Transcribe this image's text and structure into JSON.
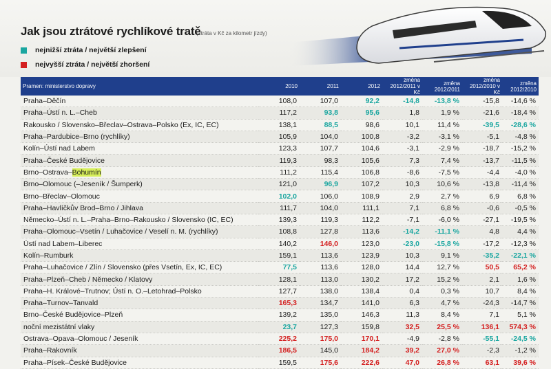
{
  "title": "Jak jsou ztrátové rychlíkové tratě",
  "subtitle": "(ztráta v Kč za kilometr jízdy)",
  "legend": {
    "best": {
      "label": "nejnižší ztráta / největší zlepšení",
      "color": "#1aa6a0"
    },
    "worst": {
      "label": "nejvyšší ztráta / největší zhoršení",
      "color": "#d42020"
    }
  },
  "columns": {
    "source": "Pramen: ministerstvo dopravy",
    "y2010": "2010",
    "y2011": "2011",
    "y2012": "2012",
    "chg_12_11_kc": [
      "změna",
      "2012/2011 v Kč"
    ],
    "chg_12_11_pct": [
      "změna",
      "2012/2011"
    ],
    "chg_12_10_kc": [
      "změna",
      "2012/2010 v Kč"
    ],
    "chg_12_10_pct": [
      "změna",
      "2012/2010"
    ]
  },
  "rows": [
    {
      "route": "Praha–Děčín",
      "v": [
        "108,0",
        "107,0",
        "92,2",
        "-14,8",
        "-13,8 %",
        "-15,8",
        "-14,6 %"
      ],
      "c": [
        "",
        "",
        "t",
        "t",
        "t",
        "",
        ""
      ]
    },
    {
      "route": "Praha–Ústí n. L.–Cheb",
      "v": [
        "117,2",
        "93,8",
        "95,6",
        "1,8",
        "1,9 %",
        "-21,6",
        "-18,4 %"
      ],
      "c": [
        "",
        "t",
        "t",
        "",
        "",
        "",
        ""
      ]
    },
    {
      "route": "Rakousko / Slovensko–Břeclav–Ostrava–Polsko (Ex, IC, EC)",
      "v": [
        "138,1",
        "88,5",
        "98,6",
        "10,1",
        "11,4 %",
        "-39,5",
        "-28,6 %"
      ],
      "c": [
        "",
        "t",
        "",
        "",
        "",
        "t",
        "t"
      ]
    },
    {
      "route": "Praha–Pardubice–Brno (rychlíky)",
      "v": [
        "105,9",
        "104,0",
        "100,8",
        "-3,2",
        "-3,1 %",
        "-5,1",
        "-4,8 %"
      ],
      "c": [
        "",
        "",
        "",
        "",
        "",
        "",
        ""
      ]
    },
    {
      "route": "Kolín–Ústí nad Labem",
      "v": [
        "123,3",
        "107,7",
        "104,6",
        "-3,1",
        "-2,9 %",
        "-18,7",
        "-15,2 %"
      ],
      "c": [
        "",
        "",
        "",
        "",
        "",
        "",
        ""
      ]
    },
    {
      "route": "Praha–České Budějovice",
      "v": [
        "119,3",
        "98,3",
        "105,6",
        "7,3",
        "7,4 %",
        "-13,7",
        "-11,5 %"
      ],
      "c": [
        "",
        "",
        "",
        "",
        "",
        "",
        ""
      ]
    },
    {
      "route": "Brno–Ostrava–",
      "hl": "Bohumín",
      "v": [
        "111,2",
        "115,4",
        "106,8",
        "-8,6",
        "-7,5 %",
        "-4,4",
        "-4,0 %"
      ],
      "c": [
        "",
        "",
        "",
        "",
        "",
        "",
        ""
      ]
    },
    {
      "route": "Brno–Olomouc (–Jeseník / Šumperk)",
      "v": [
        "121,0",
        "96,9",
        "107,2",
        "10,3",
        "10,6 %",
        "-13,8",
        "-11,4 %"
      ],
      "c": [
        "",
        "t",
        "",
        "",
        "",
        "",
        ""
      ]
    },
    {
      "route": "Brno–Břeclav–Olomouc",
      "v": [
        "102,0",
        "106,0",
        "108,9",
        "2,9",
        "2,7 %",
        "6,9",
        "6,8 %"
      ],
      "c": [
        "t",
        "",
        "",
        "",
        "",
        "",
        ""
      ]
    },
    {
      "route": "Praha–Havlíčkův Brod–Brno / Jihlava",
      "v": [
        "111,7",
        "104,0",
        "111,1",
        "7,1",
        "6,8 %",
        "-0,6",
        "-0,5 %"
      ],
      "c": [
        "",
        "",
        "",
        "",
        "",
        "",
        ""
      ]
    },
    {
      "route": "Německo–Ústí n. L.–Praha–Brno–Rakousko / Slovensko (IC, EC)",
      "v": [
        "139,3",
        "119,3",
        "112,2",
        "-7,1",
        "-6,0 %",
        "-27,1",
        "-19,5 %"
      ],
      "c": [
        "",
        "",
        "",
        "",
        "",
        "",
        ""
      ]
    },
    {
      "route": "Praha–Olomouc–Vsetín / Luhačovice / Veselí n. M. (rychlíky)",
      "v": [
        "108,8",
        "127,8",
        "113,6",
        "-14,2",
        "-11,1 %",
        "4,8",
        "4,4 %"
      ],
      "c": [
        "",
        "",
        "",
        "t",
        "t",
        "",
        ""
      ]
    },
    {
      "route": "Ústí nad Labem–Liberec",
      "v": [
        "140,2",
        "146,0",
        "123,0",
        "-23,0",
        "-15,8 %",
        "-17,2",
        "-12,3 %"
      ],
      "c": [
        "",
        "r",
        "",
        "t",
        "t",
        "",
        ""
      ]
    },
    {
      "route": "Kolín–Rumburk",
      "v": [
        "159,1",
        "113,6",
        "123,9",
        "10,3",
        "9,1 %",
        "-35,2",
        "-22,1 %"
      ],
      "c": [
        "",
        "",
        "",
        "",
        "",
        "t",
        "t"
      ]
    },
    {
      "route": "Praha–Luhačovice / Zlín / Slovensko (přes Vsetín, Ex, IC, EC)",
      "v": [
        "77,5",
        "113,6",
        "128,0",
        "14,4",
        "12,7 %",
        "50,5",
        "65,2 %"
      ],
      "c": [
        "t",
        "",
        "",
        "",
        "",
        "r",
        "r"
      ]
    },
    {
      "route": "Praha–Plzeň–Cheb / Německo / Klatovy",
      "v": [
        "128,1",
        "113,0",
        "130,2",
        "17,2",
        "15,2 %",
        "2,1",
        "1,6 %"
      ],
      "c": [
        "",
        "",
        "",
        "",
        "",
        "",
        ""
      ]
    },
    {
      "route": "Praha–H. Králové–Trutnov; Ústí n. O.–Letohrad–Polsko",
      "v": [
        "127,7",
        "138,0",
        "138,4",
        "0,4",
        "0,3 %",
        "10,7",
        "8,4 %"
      ],
      "c": [
        "",
        "",
        "",
        "",
        "",
        "",
        ""
      ]
    },
    {
      "route": "Praha–Turnov–Tanvald",
      "v": [
        "165,3",
        "134,7",
        "141,0",
        "6,3",
        "4,7 %",
        "-24,3",
        "-14,7 %"
      ],
      "c": [
        "r",
        "",
        "",
        "",
        "",
        "",
        ""
      ]
    },
    {
      "route": "Brno–České Budějovice–Plzeň",
      "v": [
        "139,2",
        "135,0",
        "146,3",
        "11,3",
        "8,4 %",
        "7,1",
        "5,1 %"
      ],
      "c": [
        "",
        "",
        "",
        "",
        "",
        "",
        ""
      ]
    },
    {
      "route": "noční mezistátní vlaky",
      "v": [
        "23,7",
        "127,3",
        "159,8",
        "32,5",
        "25,5 %",
        "136,1",
        "574,3 %"
      ],
      "c": [
        "t",
        "",
        "",
        "r",
        "r",
        "r",
        "r"
      ]
    },
    {
      "route": "Ostrava–Opava–Olomouc / Jeseník",
      "v": [
        "225,2",
        "175,0",
        "170,1",
        "-4,9",
        "-2,8 %",
        "-55,1",
        "-24,5 %"
      ],
      "c": [
        "r",
        "r",
        "r",
        "",
        "",
        "t",
        "t"
      ]
    },
    {
      "route": "Praha–Rakovník",
      "v": [
        "186,5",
        "145,0",
        "184,2",
        "39,2",
        "27,0 %",
        "-2,3",
        "-1,2 %"
      ],
      "c": [
        "r",
        "",
        "r",
        "r",
        "r",
        "",
        ""
      ]
    },
    {
      "route": "Praha–Písek–České Budějovice",
      "v": [
        "159,5",
        "175,6",
        "222,6",
        "47,0",
        "26,8 %",
        "63,1",
        "39,6 %"
      ],
      "c": [
        "",
        "r",
        "r",
        "r",
        "r",
        "r",
        "r"
      ]
    }
  ]
}
